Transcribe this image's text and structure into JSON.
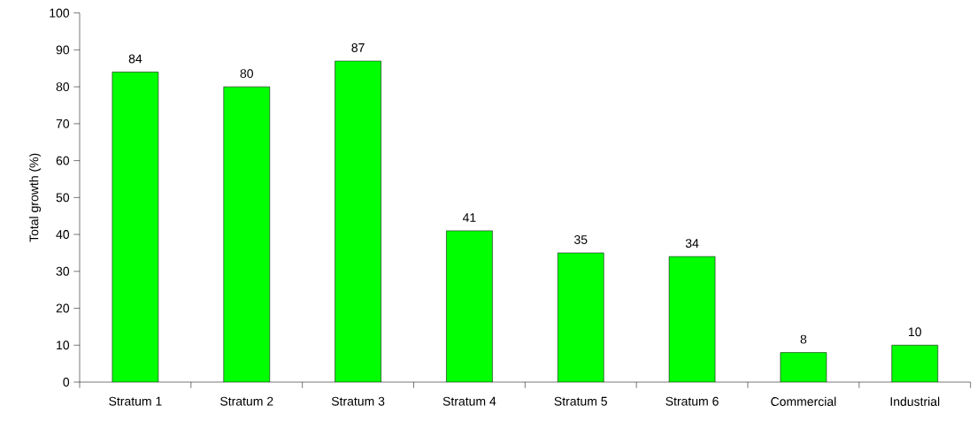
{
  "chart_data": {
    "type": "bar",
    "ylabel": "Total growth (%)",
    "categories": [
      "Stratum 1",
      "Stratum 2",
      "Stratum 3",
      "Stratum 4",
      "Stratum 5",
      "Stratum 6",
      "Commercial",
      "Industrial"
    ],
    "values": [
      84,
      80,
      87,
      41,
      35,
      34,
      8,
      10
    ],
    "color": "#00ff00",
    "ylim": [
      0,
      100
    ],
    "yticks": [
      0,
      10,
      20,
      30,
      40,
      50,
      60,
      70,
      80,
      90,
      100
    ],
    "data_labels": true
  }
}
